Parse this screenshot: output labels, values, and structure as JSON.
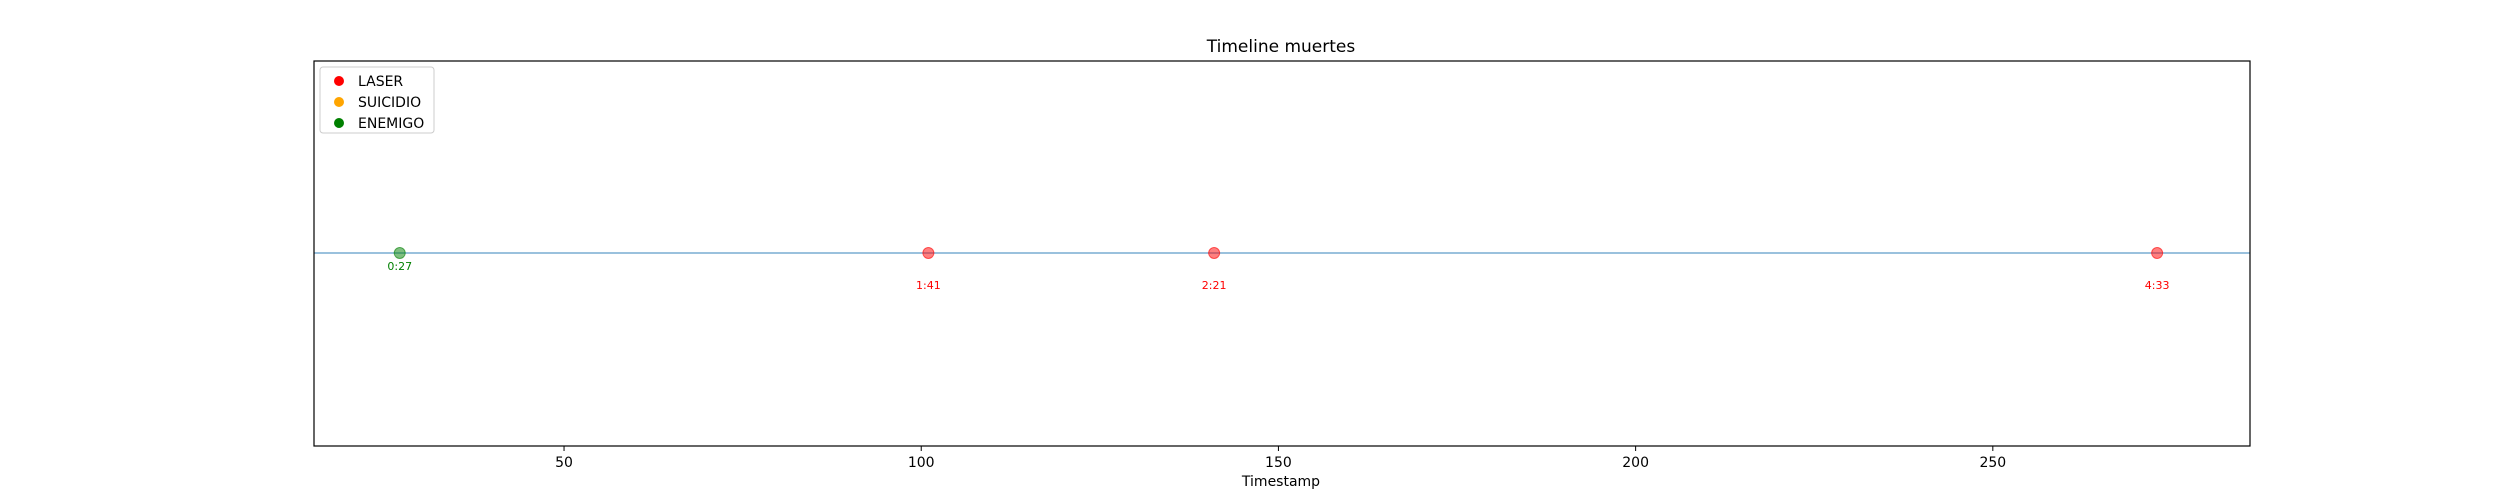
{
  "chart_data": {
    "type": "scatter",
    "title": "Timeline muertes",
    "xlabel": "Timestamp",
    "ylabel": "",
    "xlim": [
      15,
      286
    ],
    "xticks": [
      50,
      100,
      150,
      200,
      250
    ],
    "grid": false,
    "baseline": true,
    "legend_position": "upper-left",
    "legend": [
      {
        "name": "LASER",
        "color": "#ff0000"
      },
      {
        "name": "SUICIDIO",
        "color": "#ffa500"
      },
      {
        "name": "ENEMIGO",
        "color": "#008000"
      }
    ],
    "points": [
      {
        "x": 27,
        "label": "0:27",
        "category": "ENEMIGO",
        "color": "#008000",
        "label_offset": "near"
      },
      {
        "x": 101,
        "label": "1:41",
        "category": "LASER",
        "color": "#ff0000",
        "label_offset": "far"
      },
      {
        "x": 141,
        "label": "2:21",
        "category": "LASER",
        "color": "#ff0000",
        "label_offset": "far"
      },
      {
        "x": 273,
        "label": "4:33",
        "category": "LASER",
        "color": "#ff0000",
        "label_offset": "far"
      }
    ],
    "baseline_color": "#1f77b4"
  }
}
